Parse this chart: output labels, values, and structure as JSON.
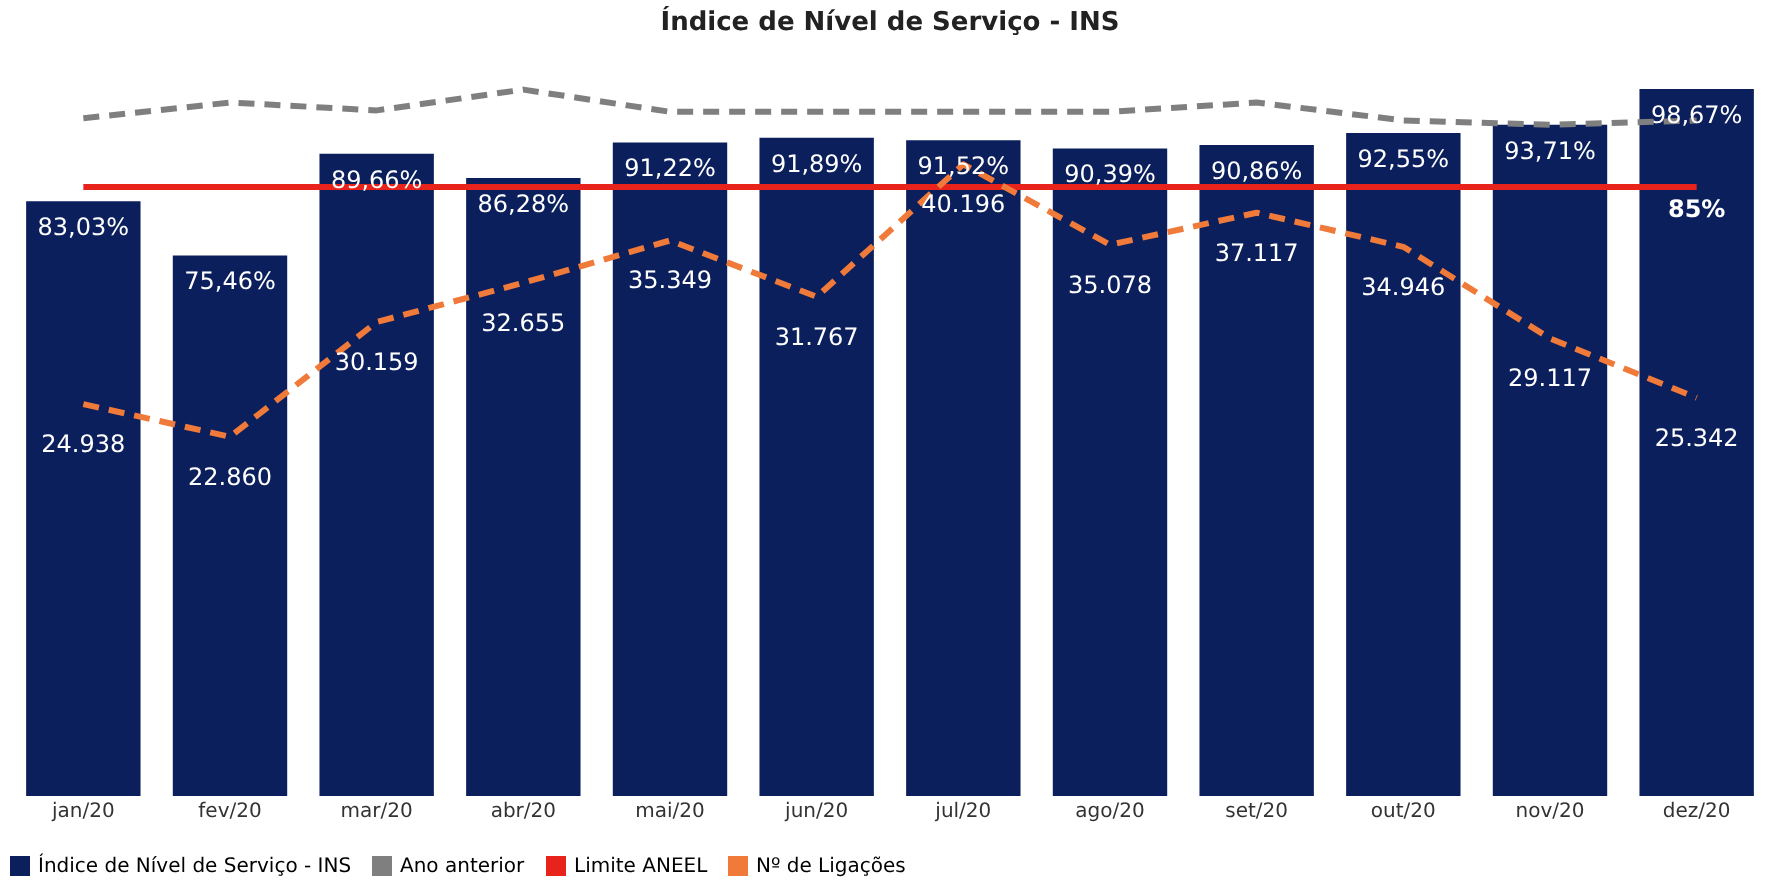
{
  "chart_data": {
    "type": "bar",
    "title": "Índice de Nível de Serviço - INS",
    "categories": [
      "jan/20",
      "fev/20",
      "mar/20",
      "abr/20",
      "mai/20",
      "jun/20",
      "jul/20",
      "ago/20",
      "set/20",
      "out/20",
      "nov/20",
      "dez/20"
    ],
    "series": [
      {
        "name": "Índice de Nível de Serviço - INS",
        "color": "#0b1f5c",
        "values": [
          83.03,
          75.46,
          89.66,
          86.28,
          91.22,
          91.89,
          91.52,
          90.39,
          90.86,
          92.55,
          93.71,
          98.67
        ],
        "value_labels": [
          "83,03%",
          "75,46%",
          "89,66%",
          "86,28%",
          "91,22%",
          "91,89%",
          "91,52%",
          "90,39%",
          "90,86%",
          "92,55%",
          "93,71%",
          "98,67%"
        ]
      },
      {
        "name": "Ano anterior",
        "type": "line",
        "color": "#7f7f7f",
        "line_style": "dashed",
        "values": [
          94.6,
          96.8,
          95.7,
          98.6,
          95.5,
          95.5,
          95.5,
          95.5,
          96.8,
          94.3,
          93.7,
          94.3
        ]
      },
      {
        "name": "Limite ANEEL",
        "type": "line",
        "color": "#e8231c",
        "line_style": "solid",
        "values": [
          85,
          85,
          85,
          85,
          85,
          85,
          85,
          85,
          85,
          85,
          85,
          85
        ],
        "value_labels": [
          null,
          null,
          null,
          null,
          null,
          null,
          null,
          null,
          null,
          null,
          null,
          "85%"
        ]
      },
      {
        "name": "Nº de Ligações",
        "type": "line",
        "axis": "y2",
        "color": "#f07a3a",
        "line_style": "dashed",
        "values": [
          24938,
          22860,
          30159,
          32655,
          35349,
          31767,
          40196,
          35078,
          37117,
          34946,
          29117,
          25342
        ],
        "value_labels": [
          "24.938",
          "22.860",
          "30.159",
          "32.655",
          "35.349",
          "31.767",
          "40.196",
          "35.078",
          "37.117",
          "34.946",
          "29.117",
          "25.342"
        ]
      }
    ],
    "tick_labels": "x",
    "legend": "bottom"
  }
}
